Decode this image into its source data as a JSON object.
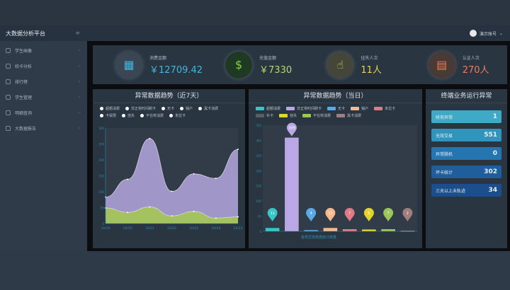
{
  "app": {
    "title": "大数据分析平台",
    "user": "演示账号"
  },
  "sidebar": {
    "items": [
      {
        "label": "学生画像"
      },
      {
        "label": "校卡分析"
      },
      {
        "label": "排行榜"
      },
      {
        "label": "学生管理"
      },
      {
        "label": "明细查询"
      },
      {
        "label": "大数据报告"
      }
    ]
  },
  "kpis": [
    {
      "label": "消费金额",
      "value": "￥12709.42",
      "color": "#3fb8e0",
      "icon": "coins-icon"
    },
    {
      "label": "充值金额",
      "value": "￥7330",
      "color": "#b8d86a",
      "icon": "money-bag-icon"
    },
    {
      "label": "挂失人次",
      "value": "11人",
      "color": "#e8d34a",
      "icon": "hand-pointer-icon"
    },
    {
      "label": "认证人次",
      "value": "270人",
      "color": "#f07a5a",
      "icon": "id-card-icon"
    }
  ],
  "chart_data": [
    {
      "type": "area",
      "title": "异常数据趋势（近7天）",
      "legend": [
        "超额消费",
        "非正常时间刷卡",
        "无卡",
        "销户",
        "黑卡消费",
        "卡受限",
        "挂失",
        "不在校消费",
        "未拉卡"
      ],
      "x": [
        "10/19",
        "10/20",
        "10/21",
        "10/22",
        "10/23",
        "10/24",
        "10/25"
      ],
      "ylim": [
        0,
        300
      ],
      "yticks": [
        0,
        50,
        100,
        150,
        200,
        250,
        300
      ],
      "series": [
        {
          "name": "非正常时间刷卡",
          "color": "#a89bd0",
          "values": [
            83,
            139,
            267,
            101,
            156,
            142,
            233
          ]
        },
        {
          "name": "不在校消费",
          "color": "#a4c45a",
          "values": [
            49,
            35,
            52,
            24,
            38,
            17,
            21
          ]
        }
      ]
    },
    {
      "type": "bar",
      "title": "异常数据趋势（当日）",
      "legend": [
        {
          "name": "超额消费",
          "color": "#37c6c6"
        },
        {
          "name": "非正常时间刷卡",
          "color": "#b9a7e6"
        },
        {
          "name": "无卡",
          "color": "#5aaae8"
        },
        {
          "name": "销户",
          "color": "#f5b98c"
        },
        {
          "name": "未拉卡",
          "color": "#e07a86"
        },
        {
          "name": "补卡",
          "color": "#5a5f66"
        },
        {
          "name": "挂失",
          "color": "#e2d42a"
        },
        {
          "name": "不在校消费",
          "color": "#9cc65a"
        },
        {
          "name": "黑卡消费",
          "color": "#a07e7e"
        }
      ],
      "categories": [
        "超额消费",
        "非正常时间刷卡",
        "无卡",
        "销户",
        "未拉卡",
        "挂失",
        "不在校消费",
        "黑卡消费"
      ],
      "values": [
        11,
        309,
        4,
        11,
        7,
        6,
        7,
        2
      ],
      "colors": [
        "#37c6c6",
        "#b9a7e6",
        "#5aaae8",
        "#f5b98c",
        "#e07a86",
        "#e2d42a",
        "#9cc65a",
        "#a07e7e"
      ],
      "ylim": [
        0,
        350
      ],
      "yticks": [
        0,
        50,
        100,
        150,
        200,
        250,
        300,
        350
      ],
      "xlabel": "各类异常数据统计数量"
    }
  ],
  "alerts": {
    "title": "终端业务运行异常",
    "items": [
      {
        "label": "财务异常",
        "value": "1",
        "color": "#3fa9c8"
      },
      {
        "label": "无效交易",
        "value": "551",
        "color": "#2f95bd"
      },
      {
        "label": "异常脱机",
        "value": "0",
        "color": "#2576b0"
      },
      {
        "label": "坏卡统计",
        "value": "302",
        "color": "#1f5e9c"
      },
      {
        "label": "三天以上未轨迹",
        "value": "34",
        "color": "#1b4f8c"
      }
    ]
  }
}
